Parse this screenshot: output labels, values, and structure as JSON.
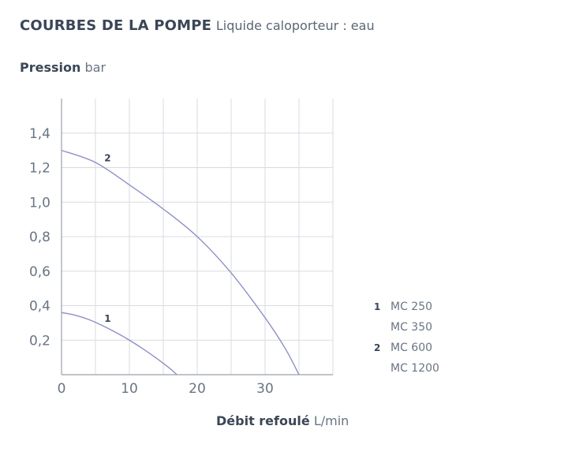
{
  "header": {
    "title_strong": "COURBES DE LA POMPE",
    "title_light": "Liquide caloporteur : eau"
  },
  "y_axis_label": {
    "strong": "Pression",
    "light": "bar"
  },
  "x_axis_label": {
    "strong": "Débit refoulé",
    "light": "L/min"
  },
  "legend": [
    {
      "num": "1",
      "model": "MC 250"
    },
    {
      "num": "",
      "model": "MC 350"
    },
    {
      "num": "2",
      "model": "MC 600"
    },
    {
      "num": "",
      "model": "MC 1200"
    }
  ],
  "chart_data": {
    "type": "line",
    "title": "COURBES DE LA POMPE",
    "xlabel": "Débit refoulé L/min",
    "ylabel": "Pression bar",
    "xlim": [
      0,
      40
    ],
    "ylim": [
      0,
      1.6
    ],
    "x_ticks": [
      0,
      10,
      20,
      30
    ],
    "x_tick_labels": [
      "0",
      "10",
      "20",
      "30"
    ],
    "y_ticks": [
      0.2,
      0.4,
      0.6,
      0.8,
      1.0,
      1.2,
      1.4
    ],
    "y_tick_labels": [
      "0,2",
      "0,4",
      "0,6",
      "0,8",
      "1,0",
      "1,2",
      "1,4"
    ],
    "grid": true,
    "legend_position": "right",
    "colors": {
      "curve": "#8f8fc6",
      "grid": "#d9dbe0",
      "axis": "#9aa0aa"
    },
    "series": [
      {
        "name": "1",
        "label": "1",
        "label_at": [
          6.8,
          0.33
        ],
        "x": [
          0,
          2,
          4,
          6,
          8,
          10,
          12,
          14,
          16,
          17
        ],
        "y": [
          0.36,
          0.345,
          0.32,
          0.285,
          0.245,
          0.2,
          0.15,
          0.095,
          0.035,
          0.0
        ]
      },
      {
        "name": "2",
        "label": "2",
        "label_at": [
          6.8,
          1.26
        ],
        "x": [
          0,
          5,
          10,
          15,
          20,
          25,
          30,
          33,
          35
        ],
        "y": [
          1.3,
          1.23,
          1.1,
          0.96,
          0.8,
          0.59,
          0.33,
          0.15,
          0.0
        ]
      }
    ]
  }
}
